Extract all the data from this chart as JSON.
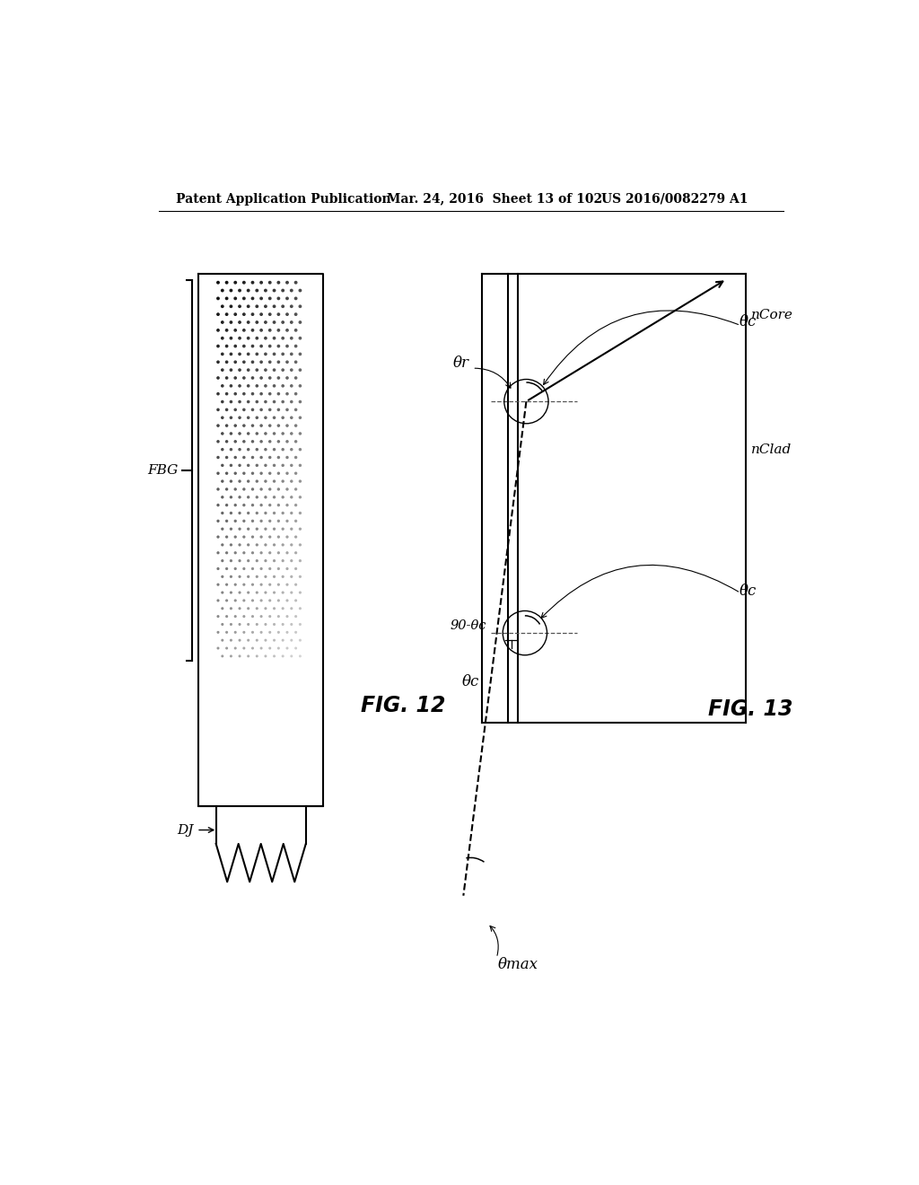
{
  "header_left": "Patent Application Publication",
  "header_mid": "Mar. 24, 2016  Sheet 13 of 102",
  "header_right": "US 2016/0082279 A1",
  "fig12_label": "FIG. 12",
  "fig13_label": "FIG. 13",
  "fbg_label": "FBG",
  "dj_label": "DJ",
  "ncore_label": "nCore",
  "nclad_label": "nClad",
  "theta_r_label": "θr",
  "theta_c_label": "θc",
  "theta_max_label": "θmax",
  "ninety_minus_theta_c": "90-θc",
  "bg_color": "#ffffff",
  "line_color": "#000000"
}
